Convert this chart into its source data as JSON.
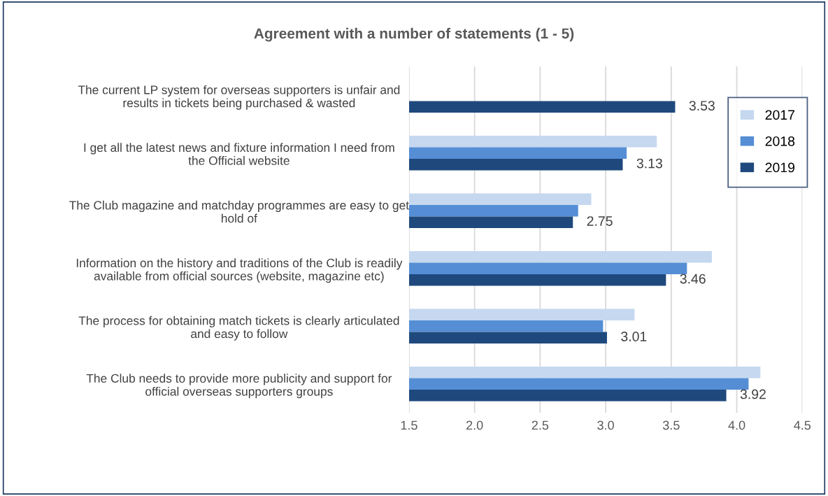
{
  "chart_data": {
    "type": "bar",
    "orientation": "horizontal",
    "title": "Agreement with a number of statements (1 - 5)",
    "categories": [
      "The current LP system for overseas supporters is unfair and\nresults in tickets being purchased & wasted",
      "I get all the latest news and fixture information I need from\nthe Official website",
      "The Club magazine and matchday programmes are easy to get\nhold of",
      "Information on the history and traditions of the Club is readily\navailable from official sources (website, magazine etc)",
      "The process for obtaining match tickets is clearly articulated\nand easy to follow",
      "The Club needs to provide more publicity and support for\nofficial overseas supporters groups"
    ],
    "series": [
      {
        "name": "2017",
        "color": "#c5d8f0",
        "values": [
          null,
          3.39,
          2.89,
          3.81,
          3.22,
          4.18
        ]
      },
      {
        "name": "2018",
        "color": "#558ed5",
        "values": [
          null,
          3.16,
          2.79,
          3.62,
          2.98,
          4.09
        ]
      },
      {
        "name": "2019",
        "color": "#1f497d",
        "values": [
          3.53,
          3.13,
          2.75,
          3.46,
          3.01,
          3.92
        ],
        "value_labels": [
          "3.53",
          "3.13",
          "2.75",
          "3.46",
          "3.01",
          "3.92"
        ]
      }
    ],
    "xlim": [
      1.5,
      4.5
    ],
    "xticks": [
      "1.5",
      "2.0",
      "2.5",
      "3.0",
      "3.5",
      "4.0",
      "4.5"
    ],
    "grid": "x",
    "legend": "top right"
  }
}
